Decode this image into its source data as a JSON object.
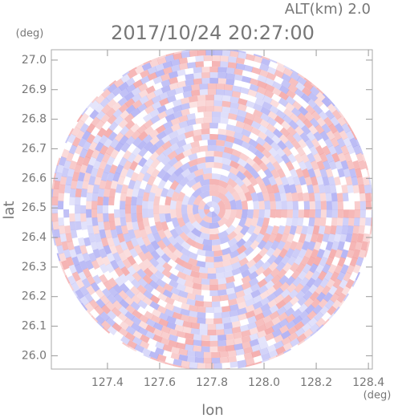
{
  "chart_data": {
    "type": "heatmap",
    "title": "2017/10/24 20:27:00",
    "annotation": "ALT(km) 2.0",
    "xlabel": "lon",
    "ylabel": "lat",
    "xunit": "(deg)",
    "yunit": "(deg)",
    "xlim": [
      127.185,
      128.415
    ],
    "ylim": [
      25.955,
      27.035
    ],
    "xticks": [
      127.4,
      127.6,
      127.8,
      {
        "value": 128,
        "label": "128.0"
      },
      128.2,
      128.4
    ],
    "yticks": [
      {
        "value": 26,
        "label": "26.0"
      },
      26.1,
      26.2,
      26.3,
      26.4,
      26.5,
      26.6,
      26.7,
      26.8,
      26.9,
      {
        "value": 27,
        "label": "27.0"
      }
    ]
  }
}
